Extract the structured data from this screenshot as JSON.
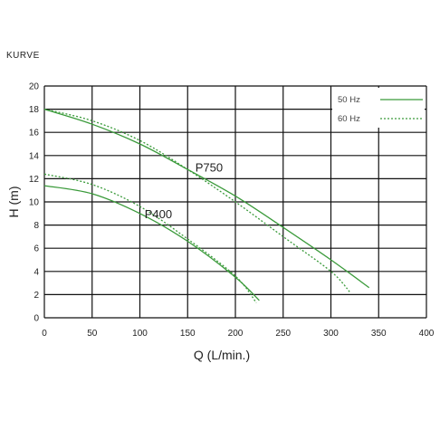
{
  "page_title": "KURVE",
  "chart_data": {
    "type": "line",
    "title": "",
    "xlabel": "Q (L/min.)",
    "ylabel": "H (m)",
    "xlim": [
      0,
      400
    ],
    "ylim": [
      0,
      20
    ],
    "xticks": [
      "0",
      "50",
      "100",
      "150",
      "200",
      "250",
      "300",
      "350",
      "400"
    ],
    "yticks": [
      "0",
      "2",
      "4",
      "6",
      "8",
      "10",
      "12",
      "14",
      "16",
      "18",
      "20"
    ],
    "grid": true,
    "legend_position": "top-right",
    "line_color": "#3a9a3a",
    "legend": [
      {
        "label": "50 Hz",
        "style": "solid"
      },
      {
        "label": "60 Hz",
        "style": "dotted"
      }
    ],
    "curve_labels": [
      {
        "text": "P750",
        "x": 158,
        "y": 12.6
      },
      {
        "text": "P400",
        "x": 105,
        "y": 8.6
      }
    ],
    "series": [
      {
        "pump": "P750",
        "freq": "50 Hz",
        "style": "solid",
        "x": [
          0,
          50,
          100,
          150,
          200,
          250,
          300,
          340
        ],
        "y": [
          18.0,
          16.7,
          15.0,
          12.8,
          10.5,
          7.8,
          5.0,
          2.6
        ]
      },
      {
        "pump": "P750",
        "freq": "60 Hz",
        "style": "dotted",
        "x": [
          0,
          50,
          100,
          150,
          200,
          250,
          300,
          320
        ],
        "y": [
          18.0,
          17.0,
          15.3,
          12.8,
          10.0,
          7.0,
          4.0,
          2.2
        ]
      },
      {
        "pump": "P400",
        "freq": "50 Hz",
        "style": "solid",
        "x": [
          0,
          50,
          100,
          150,
          200,
          225
        ],
        "y": [
          11.4,
          10.7,
          9.0,
          6.6,
          3.5,
          1.5
        ]
      },
      {
        "pump": "P400",
        "freq": "60 Hz",
        "style": "dotted",
        "x": [
          0,
          50,
          100,
          150,
          200,
          222
        ],
        "y": [
          12.4,
          11.5,
          9.6,
          6.8,
          3.6,
          1.3
        ]
      }
    ]
  }
}
